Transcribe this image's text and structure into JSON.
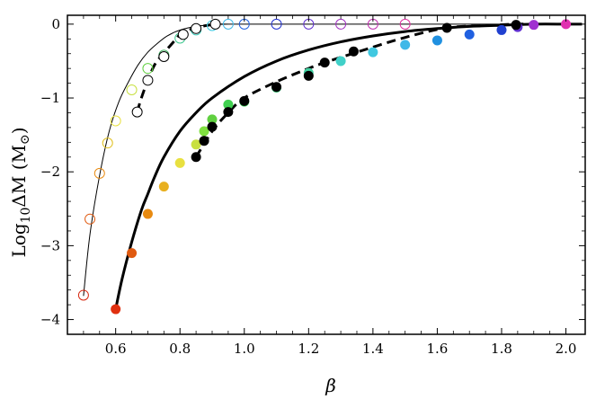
{
  "chart_data": {
    "type": "scatter",
    "xlabel": "β",
    "ylabel": "Log₁₀ΔM (M☉)",
    "ylabel_parts": {
      "main": "Log",
      "sub": "10",
      "rest": "ΔM (M",
      "sun": "⊙",
      "close": ")"
    },
    "xlim": [
      0.45,
      2.06
    ],
    "ylim": [
      -4.2,
      0.12
    ],
    "xticks": [
      0.6,
      0.8,
      1.0,
      1.2,
      1.4,
      1.6,
      1.8,
      2.0
    ],
    "xtick_labels": [
      "0.6",
      "0.8",
      "1.0",
      "1.2",
      "1.4",
      "1.6",
      "1.8",
      "2.0"
    ],
    "yticks": [
      0,
      -1,
      -2,
      -3,
      -4
    ],
    "ytick_labels": [
      "0",
      "−1",
      "−2",
      "−3",
      "−4"
    ],
    "grid": false,
    "series": [
      {
        "style": "thin-solid-line",
        "x": [
          0.5,
          0.52,
          0.55,
          0.58,
          0.61,
          0.64,
          0.67,
          0.7,
          0.73,
          0.76,
          0.8,
          0.85,
          0.9,
          0.95,
          1.0,
          2.05
        ],
        "y": [
          -3.68,
          -2.85,
          -2.05,
          -1.45,
          -1.05,
          -0.78,
          -0.55,
          -0.38,
          -0.26,
          -0.16,
          -0.08,
          -0.03,
          -0.01,
          0,
          0,
          0
        ]
      },
      {
        "style": "open-circles",
        "x": [
          0.5,
          0.52,
          0.55,
          0.575,
          0.6,
          0.65,
          0.7,
          0.75,
          0.8,
          0.85,
          0.9,
          0.95,
          1.0,
          1.1,
          1.2,
          1.3,
          1.4,
          1.5
        ],
        "y": [
          -3.67,
          -2.64,
          -2.02,
          -1.61,
          -1.31,
          -0.89,
          -0.6,
          -0.42,
          -0.19,
          -0.08,
          -0.02,
          0,
          0,
          0,
          0,
          0,
          0,
          0
        ],
        "colors": [
          "#d62810",
          "#e05a10",
          "#e88a10",
          "#e0c020",
          "#e8e040",
          "#c8e040",
          "#60d040",
          "#40b060",
          "#40c890",
          "#40d0c0",
          "#40c8e0",
          "#40b8e8",
          "#2060e0",
          "#2030d0",
          "#6030d0",
          "#a030c0",
          "#c030b0",
          "#e030a0"
        ]
      },
      {
        "style": "thick-dashed-line",
        "x": [
          0.667,
          0.68,
          0.7,
          0.72,
          0.74,
          0.76,
          0.78,
          0.8,
          0.82,
          0.84,
          0.86,
          0.88,
          0.91
        ],
        "y": [
          -1.19,
          -1.0,
          -0.76,
          -0.56,
          -0.44,
          -0.34,
          -0.24,
          -0.14,
          -0.1,
          -0.06,
          -0.04,
          -0.02,
          0
        ]
      },
      {
        "style": "open-circles-black",
        "x": [
          0.667,
          0.7,
          0.75,
          0.81,
          0.85,
          0.91
        ],
        "y": [
          -1.19,
          -0.76,
          -0.44,
          -0.14,
          -0.06,
          0
        ]
      },
      {
        "style": "thick-solid-line",
        "x": [
          0.6,
          0.62,
          0.65,
          0.68,
          0.7,
          0.72,
          0.75,
          0.8,
          0.85,
          0.9,
          1.0,
          1.1,
          1.2,
          1.3,
          1.4,
          1.5,
          1.6,
          1.7,
          1.8,
          1.9,
          2.0,
          2.05
        ],
        "y": [
          -3.86,
          -3.45,
          -2.95,
          -2.52,
          -2.3,
          -2.08,
          -1.8,
          -1.45,
          -1.2,
          -1.0,
          -0.71,
          -0.5,
          -0.35,
          -0.24,
          -0.16,
          -0.1,
          -0.06,
          -0.03,
          -0.015,
          0,
          0,
          0
        ]
      },
      {
        "style": "filled-circles",
        "x": [
          0.6,
          0.65,
          0.7,
          0.75,
          0.8,
          0.85,
          0.875,
          0.9,
          0.95,
          1.0,
          1.1,
          1.2,
          1.3,
          1.4,
          1.5,
          1.6,
          1.7,
          1.8,
          1.85,
          1.9,
          2.0
        ],
        "y": [
          -3.86,
          -3.1,
          -2.57,
          -2.2,
          -1.88,
          -1.63,
          -1.45,
          -1.29,
          -1.09,
          -1.05,
          -0.86,
          -0.66,
          -0.5,
          -0.38,
          -0.28,
          -0.22,
          -0.14,
          -0.08,
          -0.04,
          -0.01,
          0
        ],
        "colors": [
          "#e03010",
          "#e05a10",
          "#e88a10",
          "#e8b020",
          "#e8e040",
          "#c8e040",
          "#80e040",
          "#60d040",
          "#40d050",
          "#40e060",
          "#40d080",
          "#40d0a0",
          "#40d0c8",
          "#40c8e0",
          "#40b8e8",
          "#2090e0",
          "#2060e0",
          "#2040d0",
          "#6030d0",
          "#a030d0",
          "#e030b0"
        ]
      },
      {
        "style": "thick-dashed-line",
        "x": [
          0.85,
          0.9,
          0.95,
          1.0,
          1.1,
          1.2,
          1.25,
          1.35,
          1.5,
          1.63,
          1.75,
          1.84,
          1.9
        ],
        "y": [
          -1.8,
          -1.45,
          -1.2,
          -1.0,
          -0.78,
          -0.6,
          -0.52,
          -0.38,
          -0.18,
          -0.05,
          -0.02,
          0,
          0
        ]
      },
      {
        "style": "filled-circles-black",
        "x": [
          0.85,
          0.875,
          0.9,
          0.95,
          1.0,
          1.1,
          1.2,
          1.25,
          1.34,
          1.63,
          1.845
        ],
        "y": [
          -1.8,
          -1.58,
          -1.39,
          -1.19,
          -1.04,
          -0.85,
          -0.7,
          -0.52,
          -0.37,
          -0.05,
          -0.01
        ]
      }
    ]
  }
}
